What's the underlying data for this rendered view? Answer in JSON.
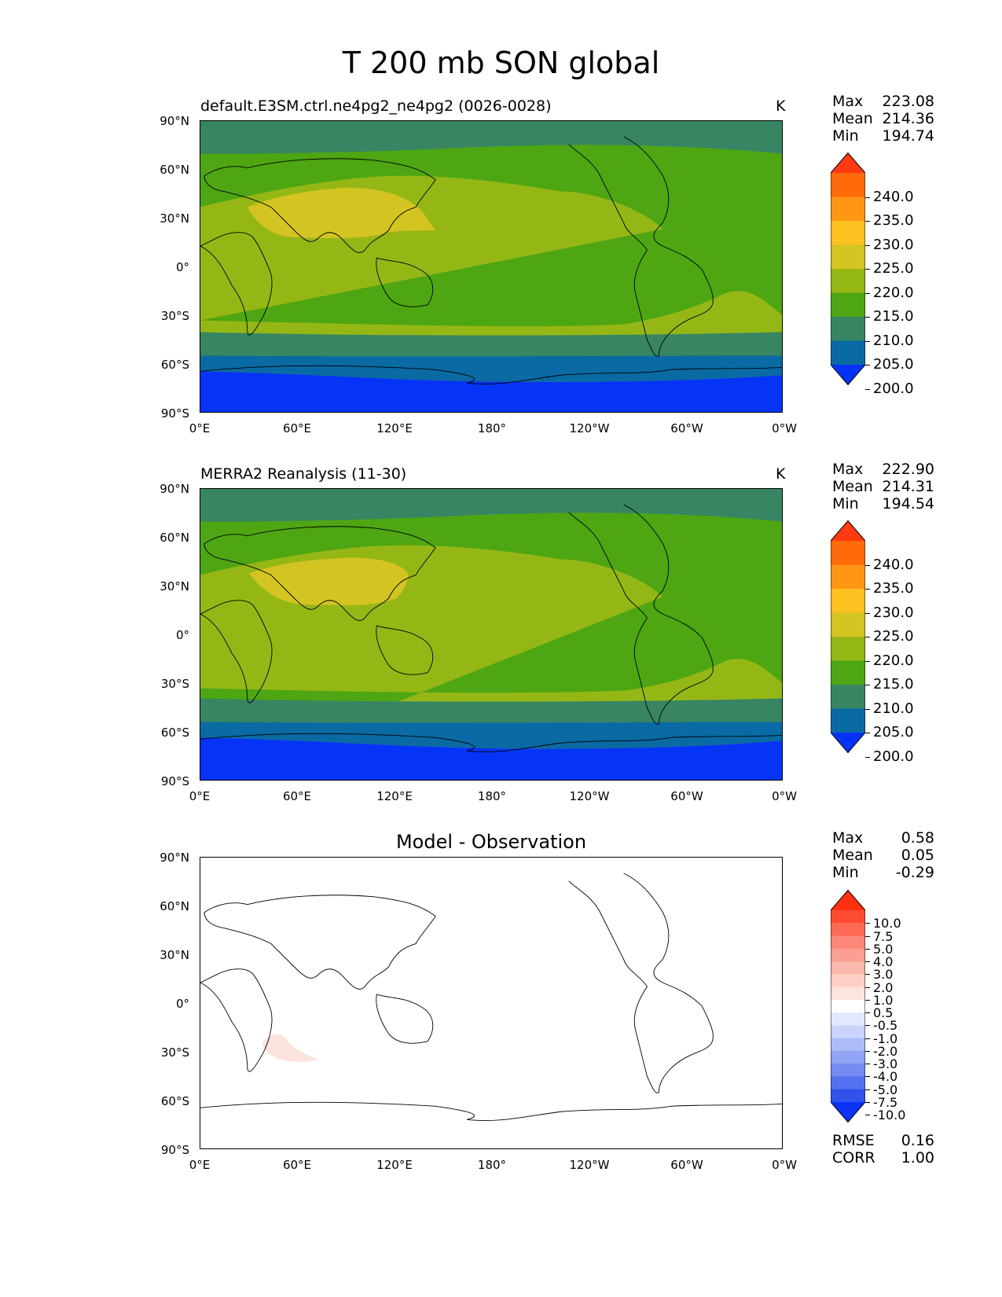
{
  "figure_title": "T 200 mb SON global",
  "panels": [
    {
      "title": "default.E3SM.ctrl.ne4pg2_ne4pg2 (0026-0028)",
      "units": "K",
      "stats": {
        "max": "223.08",
        "mean": "214.36",
        "min": "194.74"
      }
    },
    {
      "title": "MERRA2 Reanalysis (11-30)",
      "units": "K",
      "stats": {
        "max": "222.90",
        "mean": "214.31",
        "min": "194.54"
      }
    },
    {
      "title": "Model - Observation",
      "units": "",
      "stats": {
        "max": "0.58",
        "mean": "0.05",
        "min": "-0.29"
      },
      "extra_stats": {
        "rmse": "0.16",
        "corr": "1.00"
      }
    }
  ],
  "stat_labels": {
    "max": "Max",
    "mean": "Mean",
    "min": "Min",
    "rmse": "RMSE",
    "corr": "CORR"
  },
  "axes": {
    "lat_ticks": [
      "90°N",
      "60°N",
      "30°N",
      "0°",
      "30°S",
      "60°S",
      "90°S"
    ],
    "lon_ticks": [
      "0°E",
      "60°E",
      "120°E",
      "180°",
      "120°W",
      "60°W",
      "0°W"
    ]
  },
  "colorbar_main": {
    "labels": [
      "240.0",
      "235.0",
      "230.0",
      "225.0",
      "220.0",
      "215.0",
      "210.0",
      "205.0",
      "200.0"
    ],
    "colors": [
      "#ff3a10",
      "#ff6a0a",
      "#ff9616",
      "#fcc01f",
      "#d3c421",
      "#95b716",
      "#4da612",
      "#378563",
      "#0a6aa3",
      "#0634f7"
    ]
  },
  "colorbar_diff": {
    "labels": [
      "10.0",
      "7.5",
      "5.0",
      "4.0",
      "3.0",
      "2.0",
      "1.0",
      "0.5",
      "-0.5",
      "-1.0",
      "-2.0",
      "-3.0",
      "-4.0",
      "-5.0",
      "-7.5",
      "-10.0"
    ],
    "colors": [
      "#ff3010",
      "#fe4c33",
      "#fd6a55",
      "#fc8677",
      "#fb9f92",
      "#fbb8ad",
      "#fbcfc6",
      "#fce3de",
      "#ffffff",
      "#e4e8fd",
      "#c9d3fb",
      "#adbcf8",
      "#91a4f5",
      "#748cf2",
      "#5270ef",
      "#2f52eb",
      "#0a32f5"
    ]
  },
  "chart_data": [
    {
      "type": "heatmap",
      "title": "default.E3SM.ctrl.ne4pg2_ne4pg2 (0026-0028)",
      "units": "K",
      "xlim": [
        0,
        360
      ],
      "ylim": [
        -90,
        90
      ],
      "levels": [
        200,
        205,
        210,
        215,
        220,
        225,
        230,
        235,
        240
      ],
      "max": 223.08,
      "mean": 214.36,
      "min": 194.74
    },
    {
      "type": "heatmap",
      "title": "MERRA2 Reanalysis (11-30)",
      "units": "K",
      "xlim": [
        0,
        360
      ],
      "ylim": [
        -90,
        90
      ],
      "levels": [
        200,
        205,
        210,
        215,
        220,
        225,
        230,
        235,
        240
      ],
      "max": 222.9,
      "mean": 214.31,
      "min": 194.54
    },
    {
      "type": "heatmap",
      "title": "Model - Observation",
      "xlim": [
        0,
        360
      ],
      "ylim": [
        -90,
        90
      ],
      "levels": [
        -10,
        -7.5,
        -5,
        -4,
        -3,
        -2,
        -1,
        -0.5,
        0.5,
        1,
        2,
        3,
        4,
        5,
        7.5,
        10
      ],
      "max": 0.58,
      "mean": 0.05,
      "min": -0.29,
      "rmse": 0.16,
      "corr": 1.0
    }
  ]
}
